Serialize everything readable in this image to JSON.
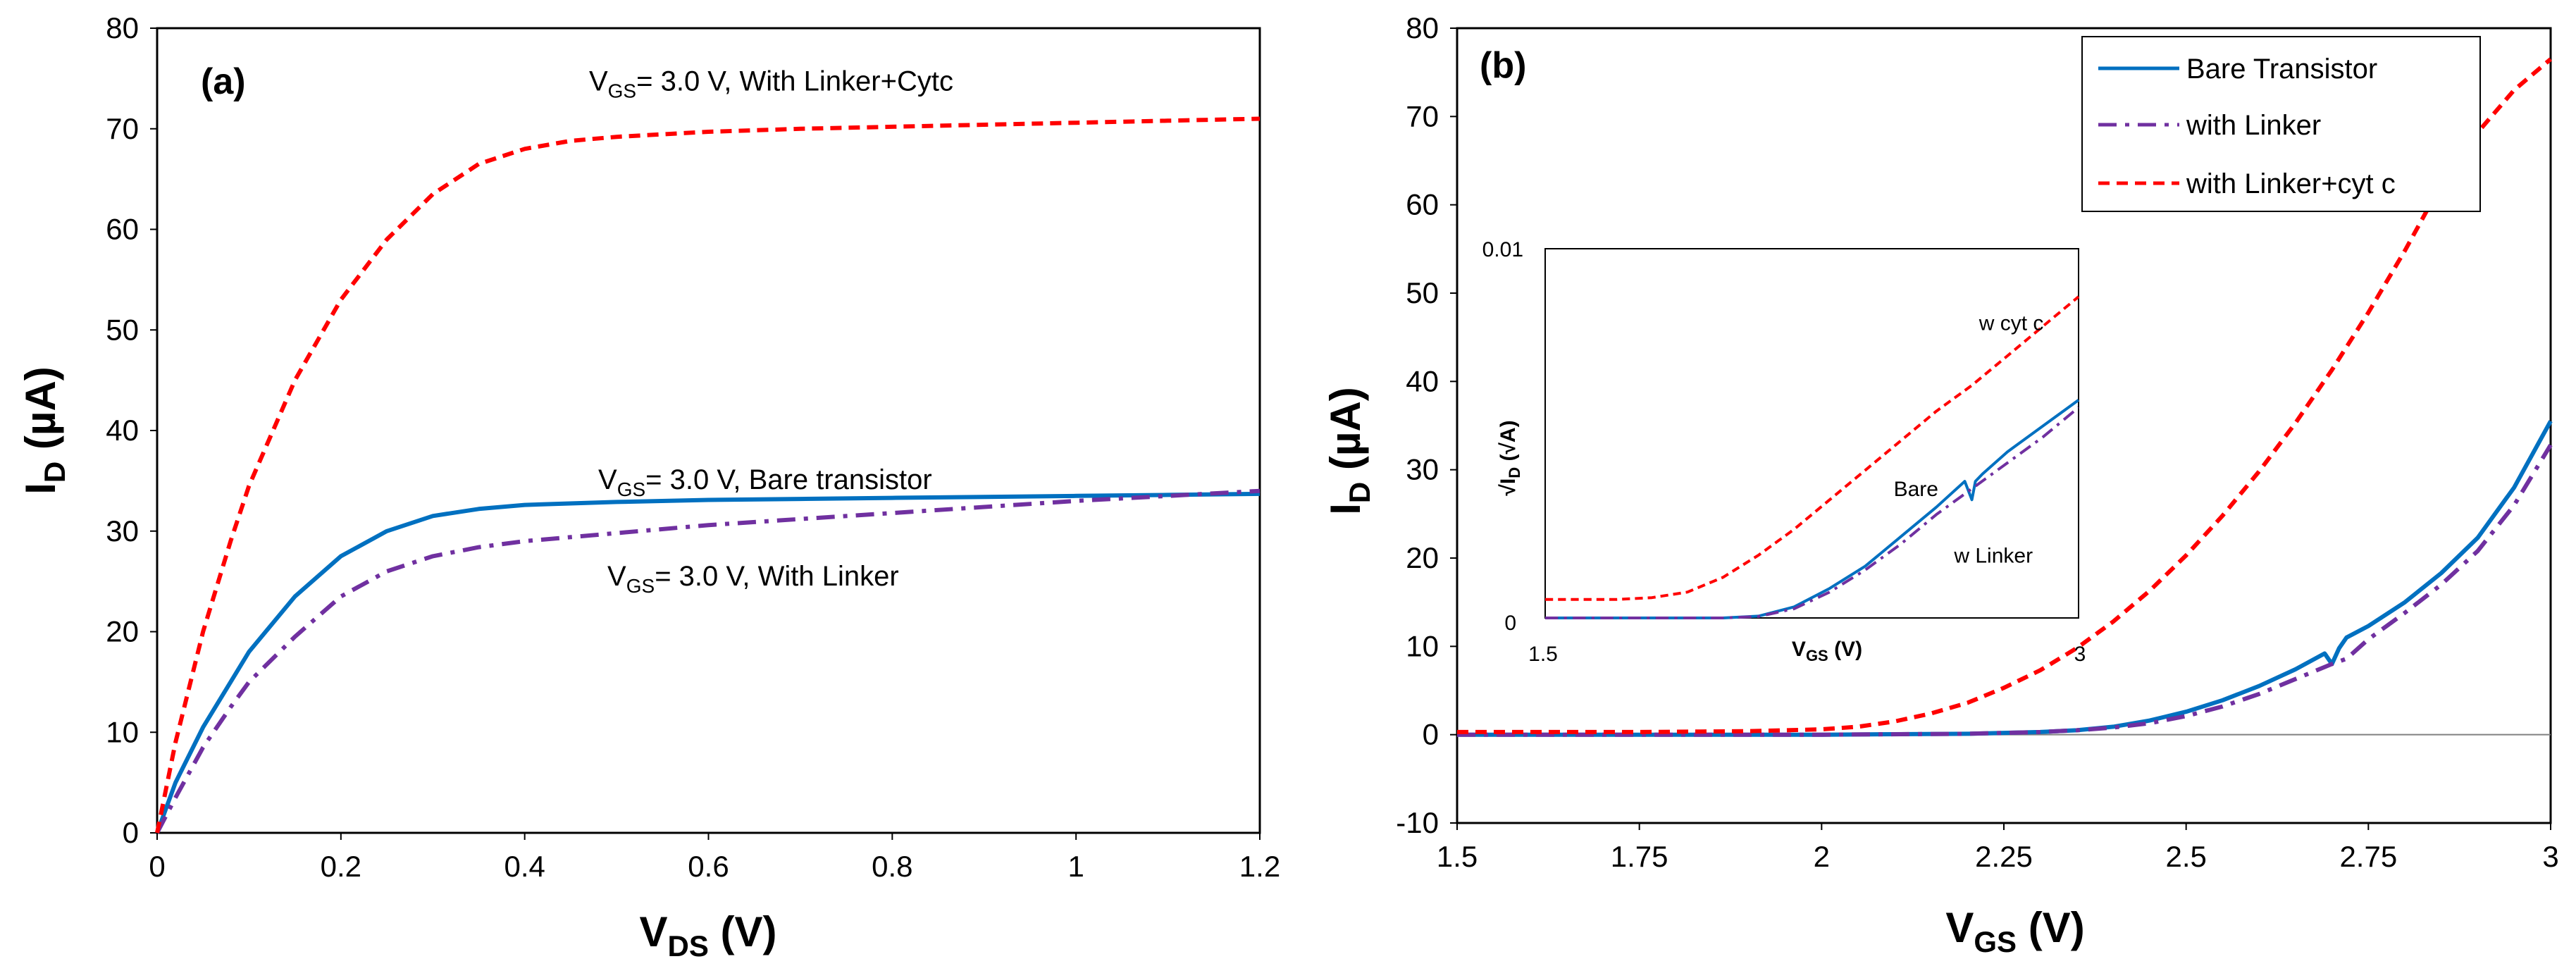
{
  "colors": {
    "bare": "#0070C0",
    "linker": "#7030A0",
    "cytc": "#FF0000",
    "zero_line": "#808080"
  },
  "chart_data": [
    {
      "type": "line",
      "panel_label": "(a)",
      "xlabel": "V",
      "xlabel_sub": "DS",
      "xlabel_unit": " (V)",
      "ylabel": "I",
      "ylabel_sub": "D",
      "ylabel_unit": " (µA)",
      "xlim": [
        0,
        1.2
      ],
      "ylim": [
        0,
        80
      ],
      "x_ticks": [
        0,
        0.2,
        0.4,
        0.6,
        0.8,
        1,
        1.2
      ],
      "x_tick_labels": [
        "0",
        "0.2",
        "0.4",
        "0.6",
        "0.8",
        "1",
        "1.2"
      ],
      "y_ticks": [
        0,
        10,
        20,
        30,
        40,
        50,
        60,
        70,
        80
      ],
      "y_tick_labels": [
        "0",
        "10",
        "20",
        "30",
        "40",
        "50",
        "60",
        "70",
        "80"
      ],
      "series": [
        {
          "name": "Bare transistor",
          "style": "solid",
          "color": "#0070C0",
          "x": [
            0,
            0.02,
            0.05,
            0.08,
            0.1,
            0.15,
            0.2,
            0.25,
            0.3,
            0.35,
            0.4,
            0.5,
            0.6,
            0.7,
            0.8,
            0.9,
            1.0,
            1.1,
            1.2
          ],
          "y": [
            0,
            5,
            10.5,
            15,
            18,
            23.5,
            27.5,
            30,
            31.5,
            32.2,
            32.6,
            32.9,
            33.1,
            33.2,
            33.3,
            33.4,
            33.5,
            33.6,
            33.7
          ]
        },
        {
          "name": "With Linker",
          "style": "dashdot",
          "color": "#7030A0",
          "x": [
            0,
            0.02,
            0.05,
            0.08,
            0.1,
            0.15,
            0.2,
            0.25,
            0.3,
            0.35,
            0.4,
            0.5,
            0.6,
            0.7,
            0.8,
            0.9,
            1.0,
            1.1,
            1.2
          ],
          "y": [
            0,
            3.5,
            8.5,
            12.5,
            15,
            19.5,
            23.5,
            26,
            27.5,
            28.4,
            29,
            29.8,
            30.6,
            31.2,
            31.8,
            32.4,
            33,
            33.5,
            34
          ]
        },
        {
          "name": "With Linker+Cytc",
          "style": "dashed",
          "color": "#FF0000",
          "x": [
            0,
            0.02,
            0.05,
            0.08,
            0.1,
            0.15,
            0.2,
            0.25,
            0.3,
            0.35,
            0.4,
            0.45,
            0.5,
            0.6,
            0.7,
            0.8,
            0.9,
            1.0,
            1.1,
            1.2
          ],
          "y": [
            0,
            9,
            20,
            29,
            34.5,
            45,
            53,
            59,
            63.5,
            66.5,
            68,
            68.8,
            69.2,
            69.7,
            70,
            70.2,
            70.4,
            70.6,
            70.8,
            71
          ]
        }
      ],
      "annotations": [
        {
          "pre": "V",
          "sub": "GS",
          "text": "= 3.0 V, With Linker+Cytc",
          "at": [
            0.47,
            73.8
          ]
        },
        {
          "pre": "V",
          "sub": "GS",
          "text": "= 3.0 V, Bare transistor",
          "at": [
            0.48,
            34.2
          ]
        },
        {
          "pre": "V",
          "sub": "GS",
          "text": "= 3.0 V, With Linker",
          "at": [
            0.49,
            24.6
          ]
        }
      ]
    },
    {
      "type": "line",
      "panel_label": "(b)",
      "xlabel": "V",
      "xlabel_sub": "GS",
      "xlabel_unit": " (V)",
      "ylabel": "I",
      "ylabel_sub": "D",
      "ylabel_unit": " (µA)",
      "xlim": [
        1.5,
        3
      ],
      "ylim": [
        -10,
        80
      ],
      "x_ticks": [
        1.5,
        1.75,
        2,
        2.25,
        2.5,
        2.75,
        3
      ],
      "x_tick_labels": [
        "1.5",
        "1.75",
        "2",
        "2.25",
        "2.5",
        "2.75",
        "3"
      ],
      "y_ticks": [
        -10,
        0,
        10,
        20,
        30,
        40,
        50,
        60,
        70,
        80
      ],
      "y_tick_labels": [
        "-10",
        "0",
        "10",
        "20",
        "30",
        "40",
        "50",
        "60",
        "70",
        "80"
      ],
      "legend": {
        "position": "top-right",
        "entries": [
          "Bare Transistor",
          "with Linker",
          "with Linker+cyt c"
        ]
      },
      "series": [
        {
          "name": "Bare Transistor",
          "style": "solid",
          "color": "#0070C0",
          "x": [
            1.5,
            1.8,
            2.0,
            2.2,
            2.3,
            2.35,
            2.4,
            2.45,
            2.5,
            2.55,
            2.6,
            2.65,
            2.69,
            2.7,
            2.71,
            2.72,
            2.75,
            2.8,
            2.85,
            2.9,
            2.95,
            3.0
          ],
          "y": [
            0,
            0,
            0,
            0.1,
            0.3,
            0.5,
            0.9,
            1.6,
            2.6,
            3.9,
            5.5,
            7.4,
            9.2,
            8.0,
            9.8,
            11.0,
            12.3,
            15.0,
            18.3,
            22.3,
            28,
            35.5
          ]
        },
        {
          "name": "with Linker",
          "style": "dashdot",
          "color": "#7030A0",
          "x": [
            1.5,
            1.8,
            2.0,
            2.2,
            2.3,
            2.35,
            2.4,
            2.45,
            2.5,
            2.55,
            2.6,
            2.65,
            2.7,
            2.72,
            2.75,
            2.8,
            2.85,
            2.9,
            2.95,
            3.0
          ],
          "y": [
            0,
            0,
            0,
            0.1,
            0.3,
            0.5,
            0.8,
            1.3,
            2.1,
            3.2,
            4.6,
            6.3,
            8.0,
            8.6,
            10.8,
            13.8,
            17.0,
            20.8,
            26,
            32.8
          ]
        },
        {
          "name": "with Linker+cyt c",
          "style": "dashed",
          "color": "#FF0000",
          "x": [
            1.5,
            1.75,
            1.9,
            2.0,
            2.05,
            2.1,
            2.15,
            2.2,
            2.25,
            2.3,
            2.35,
            2.4,
            2.45,
            2.5,
            2.55,
            2.6,
            2.65,
            2.7,
            2.75,
            2.8,
            2.85,
            2.9,
            2.95,
            3.0
          ],
          "y": [
            0.3,
            0.3,
            0.4,
            0.6,
            0.9,
            1.5,
            2.4,
            3.6,
            5.3,
            7.3,
            9.8,
            12.8,
            16.3,
            20.3,
            24.8,
            29.8,
            35.3,
            41.3,
            47.8,
            54.8,
            62.3,
            68.2,
            73,
            76.5
          ]
        }
      ],
      "inset": {
        "type": "line",
        "xlabel": "V",
        "xlabel_sub": "GS",
        "xlabel_unit": " (V)",
        "ylabel": "√I",
        "ylabel_sub": "D",
        "ylabel_unit": " (√A)",
        "xlim": [
          1.5,
          3
        ],
        "ylim": [
          0,
          0.01
        ],
        "x_tick_labels": [
          "1.5",
          "3"
        ],
        "y_tick_labels": [
          "0",
          "0.01"
        ],
        "series": [
          {
            "name": "Bare",
            "style": "solid",
            "color": "#0070C0",
            "x": [
              1.5,
              2.0,
              2.1,
              2.2,
              2.3,
              2.4,
              2.5,
              2.6,
              2.68,
              2.7,
              2.71,
              2.73,
              2.8,
              2.9,
              3.0
            ],
            "y": [
              0,
              0,
              5e-05,
              0.0003,
              0.0008,
              0.0014,
              0.0022,
              0.003,
              0.0037,
              0.0032,
              0.0037,
              0.0039,
              0.0045,
              0.0052,
              0.0059
            ]
          },
          {
            "name": "w Linker",
            "style": "dashdot",
            "color": "#7030A0",
            "x": [
              1.5,
              2.0,
              2.1,
              2.2,
              2.3,
              2.4,
              2.5,
              2.6,
              2.7,
              2.8,
              2.9,
              3.0
            ],
            "y": [
              0,
              0,
              4e-05,
              0.00025,
              0.0007,
              0.0013,
              0.002,
              0.0028,
              0.0035,
              0.0042,
              0.0049,
              0.0057
            ]
          },
          {
            "name": "w cyt c",
            "style": "dashed",
            "color": "#FF0000",
            "x": [
              1.5,
              1.7,
              1.8,
              1.9,
              2.0,
              2.1,
              2.2,
              2.3,
              2.4,
              2.5,
              2.6,
              2.7,
              2.8,
              2.9,
              3.0
            ],
            "y": [
              0.0005,
              0.0005,
              0.00055,
              0.0007,
              0.0011,
              0.0017,
              0.0024,
              0.0032,
              0.004,
              0.0048,
              0.0056,
              0.0063,
              0.0071,
              0.0079,
              0.0087
            ]
          }
        ],
        "annotations": [
          {
            "text": "w cyt c",
            "at": [
              2.72,
              0.0078
            ]
          },
          {
            "text": "Bare",
            "at": [
              2.48,
              0.0033
            ]
          },
          {
            "text": "w Linker",
            "at": [
              2.65,
              0.0015
            ]
          }
        ]
      }
    }
  ]
}
